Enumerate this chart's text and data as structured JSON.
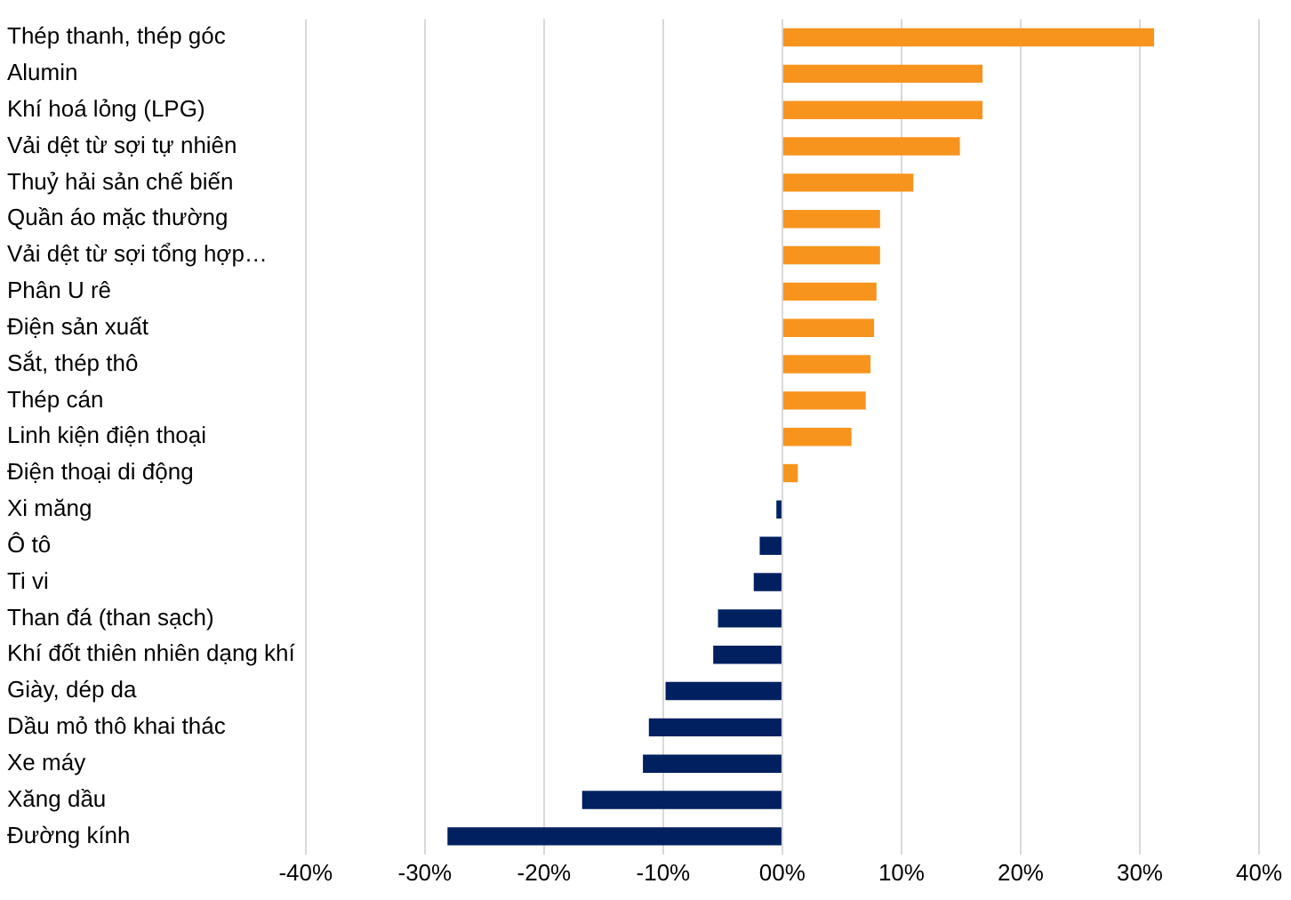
{
  "chart_data": {
    "type": "bar",
    "orientation": "horizontal",
    "grid": "x",
    "legend": false,
    "categories": [
      "Thép thanh, thép góc",
      "Alumin",
      "Khí hoá lỏng (LPG)",
      "Vải dệt từ sợi tự nhiên",
      "Thuỷ hải sản chế biến",
      "Quần áo mặc thường",
      "Vải dệt từ sợi tổng hợp…",
      "Phân U rê",
      "Điện sản xuất",
      "Sắt, thép thô",
      "Thép cán",
      "Linh kiện điện thoại",
      "Điện thoại di động",
      "Xi măng",
      "Ô tô",
      "Ti vi",
      "Than đá (than sạch)",
      "Khí đốt thiên nhiên dạng khí",
      "Giày, dép da",
      "Dầu mỏ thô khai thác",
      "Xe máy",
      "Xăng dầu",
      "Đường kính"
    ],
    "values": [
      31.2,
      16.8,
      16.8,
      14.9,
      11.0,
      8.2,
      8.2,
      7.9,
      7.7,
      7.4,
      7.0,
      5.8,
      1.3,
      -0.5,
      -1.9,
      -2.4,
      -5.4,
      -5.8,
      -9.8,
      -11.2,
      -11.7,
      -16.8,
      -28.1
    ],
    "colors": [
      "#f7941d",
      "#f7941d",
      "#f7941d",
      "#f7941d",
      "#f7941d",
      "#f7941d",
      "#f7941d",
      "#f7941d",
      "#f7941d",
      "#f7941d",
      "#f7941d",
      "#f7941d",
      "#f7941d",
      "#002060",
      "#002060",
      "#002060",
      "#002060",
      "#002060",
      "#002060",
      "#002060",
      "#002060",
      "#002060",
      "#002060"
    ],
    "xlim": [
      -40,
      40
    ],
    "xticks": [
      {
        "value": -40,
        "label": "-40%"
      },
      {
        "value": -30,
        "label": "-30%"
      },
      {
        "value": -20,
        "label": "-20%"
      },
      {
        "value": -10,
        "label": "-10%"
      },
      {
        "value": 0,
        "label": "00%"
      },
      {
        "value": 10,
        "label": "10%"
      },
      {
        "value": 20,
        "label": "20%"
      },
      {
        "value": 30,
        "label": "30%"
      },
      {
        "value": 40,
        "label": "40%"
      }
    ]
  }
}
